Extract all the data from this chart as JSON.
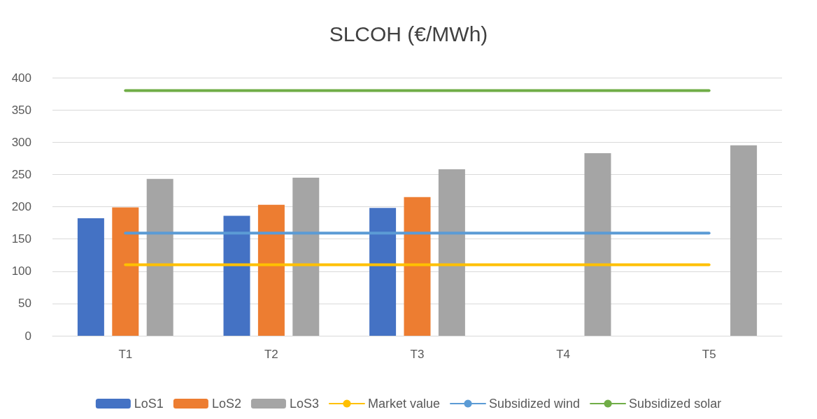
{
  "chart_data": {
    "type": "bar",
    "title": "SLCOH (€/MWh)",
    "categories": [
      "T1",
      "T2",
      "T3",
      "T4",
      "T5"
    ],
    "series": [
      {
        "name": "LoS1",
        "color": "#4472c4",
        "values": [
          182,
          186,
          198,
          null,
          null
        ]
      },
      {
        "name": "LoS2",
        "color": "#ed7d31",
        "values": [
          199,
          203,
          215,
          null,
          null
        ]
      },
      {
        "name": "LoS3",
        "color": "#a5a5a5",
        "values": [
          243,
          245,
          258,
          283,
          295
        ]
      },
      {
        "name": "Market value",
        "type": "line",
        "color": "#ffc000",
        "values": [
          110,
          110,
          110,
          110,
          110
        ]
      },
      {
        "name": "Subsidized wind",
        "type": "line",
        "color": "#5b9bd5",
        "values": [
          159,
          159,
          159,
          159,
          159
        ]
      },
      {
        "name": "Subsidized solar",
        "type": "line",
        "color": "#70ad47",
        "values": [
          380,
          380,
          380,
          380,
          380
        ]
      }
    ],
    "ylim": [
      0,
      400
    ],
    "yticks": [
      0,
      50,
      100,
      150,
      200,
      250,
      300,
      350,
      400
    ],
    "grid": "y",
    "legend": "bottom",
    "marker": "none",
    "line_style": "solid"
  }
}
